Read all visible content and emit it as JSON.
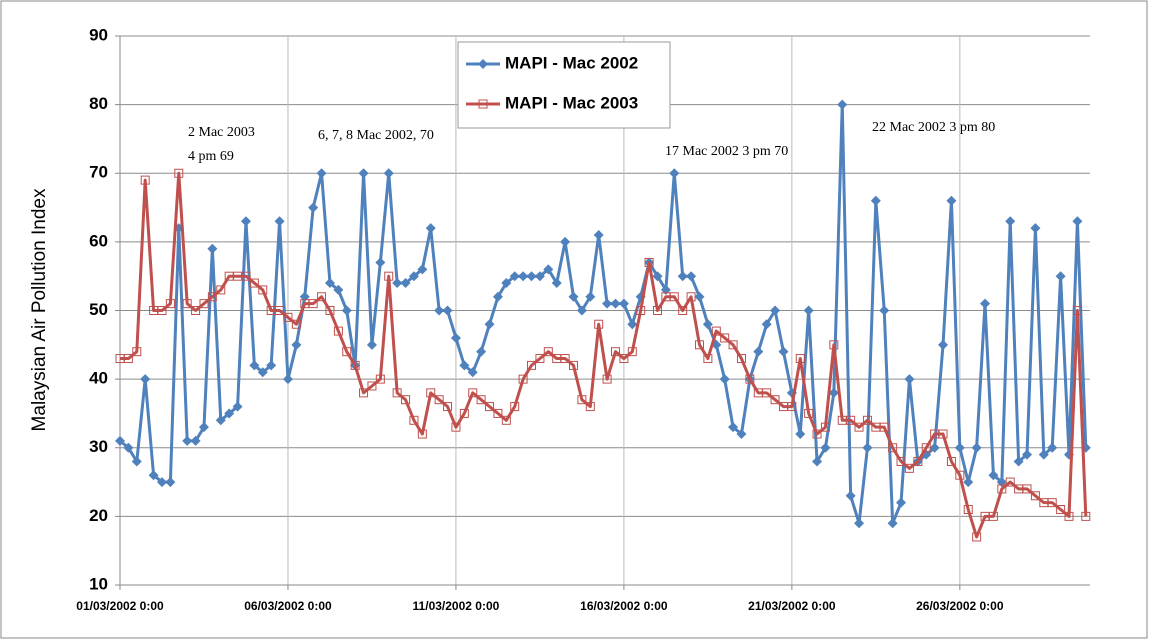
{
  "chart_data": {
    "type": "line",
    "y_label": "Malaysian Air Pollution Index",
    "annotations": [
      "2 Mac 2003",
      "4 pm 69",
      "6, 7, 8 Mac 2002, 70",
      "17 Mac 2002 3 pm 70",
      "22 Mac 2002 3 pm 80"
    ],
    "ylim": [
      10,
      90
    ],
    "yticks": [
      10,
      20,
      30,
      40,
      50,
      60,
      70,
      80,
      90
    ],
    "grid": true,
    "xlim": [
      "2002-03-01 00:00",
      "2002-03-29 21:00"
    ],
    "xticks": [
      {
        "value": "2002-03-01 00:00",
        "label": "01/03/2002 0:00"
      },
      {
        "value": "2002-03-06 00:00",
        "label": "06/03/2002 0:00"
      },
      {
        "value": "2002-03-11 00:00",
        "label": "11/03/2002 0:00"
      },
      {
        "value": "2002-03-16 00:00",
        "label": "16/03/2002 0:00"
      },
      {
        "value": "2002-03-21 00:00",
        "label": "21/03/2002 0:00"
      },
      {
        "value": "2002-03-26 00:00",
        "label": "26/03/2002 0:00"
      }
    ],
    "x": [
      "2002-03-01 00:00",
      "2002-03-01 06:00",
      "2002-03-01 12:00",
      "2002-03-01 18:00",
      "2002-03-02 00:00",
      "2002-03-02 06:00",
      "2002-03-02 12:00",
      "2002-03-02 18:00",
      "2002-03-03 00:00",
      "2002-03-03 06:00",
      "2002-03-03 12:00",
      "2002-03-03 18:00",
      "2002-03-04 00:00",
      "2002-03-04 06:00",
      "2002-03-04 12:00",
      "2002-03-04 18:00",
      "2002-03-05 00:00",
      "2002-03-05 06:00",
      "2002-03-05 12:00",
      "2002-03-05 18:00",
      "2002-03-06 00:00",
      "2002-03-06 06:00",
      "2002-03-06 12:00",
      "2002-03-06 18:00",
      "2002-03-07 00:00",
      "2002-03-07 06:00",
      "2002-03-07 12:00",
      "2002-03-07 18:00",
      "2002-03-08 00:00",
      "2002-03-08 06:00",
      "2002-03-08 12:00",
      "2002-03-08 18:00",
      "2002-03-09 00:00",
      "2002-03-09 06:00",
      "2002-03-09 12:00",
      "2002-03-09 18:00",
      "2002-03-10 00:00",
      "2002-03-10 06:00",
      "2002-03-10 12:00",
      "2002-03-10 18:00",
      "2002-03-11 00:00",
      "2002-03-11 06:00",
      "2002-03-11 12:00",
      "2002-03-11 18:00",
      "2002-03-12 00:00",
      "2002-03-12 06:00",
      "2002-03-12 12:00",
      "2002-03-12 18:00",
      "2002-03-13 00:00",
      "2002-03-13 06:00",
      "2002-03-13 12:00",
      "2002-03-13 18:00",
      "2002-03-14 00:00",
      "2002-03-14 06:00",
      "2002-03-14 12:00",
      "2002-03-14 18:00",
      "2002-03-15 00:00",
      "2002-03-15 06:00",
      "2002-03-15 12:00",
      "2002-03-15 18:00",
      "2002-03-16 00:00",
      "2002-03-16 06:00",
      "2002-03-16 12:00",
      "2002-03-16 18:00",
      "2002-03-17 00:00",
      "2002-03-17 06:00",
      "2002-03-17 12:00",
      "2002-03-17 18:00",
      "2002-03-18 00:00",
      "2002-03-18 06:00",
      "2002-03-18 12:00",
      "2002-03-18 18:00",
      "2002-03-19 00:00",
      "2002-03-19 06:00",
      "2002-03-19 12:00",
      "2002-03-19 18:00",
      "2002-03-20 00:00",
      "2002-03-20 06:00",
      "2002-03-20 12:00",
      "2002-03-20 18:00",
      "2002-03-21 00:00",
      "2002-03-21 06:00",
      "2002-03-21 12:00",
      "2002-03-21 18:00",
      "2002-03-22 00:00",
      "2002-03-22 06:00",
      "2002-03-22 12:00",
      "2002-03-22 18:00",
      "2002-03-23 00:00",
      "2002-03-23 06:00",
      "2002-03-23 12:00",
      "2002-03-23 18:00",
      "2002-03-24 00:00",
      "2002-03-24 06:00",
      "2002-03-24 12:00",
      "2002-03-24 18:00",
      "2002-03-25 00:00",
      "2002-03-25 06:00",
      "2002-03-25 12:00",
      "2002-03-25 18:00",
      "2002-03-26 00:00",
      "2002-03-26 06:00",
      "2002-03-26 12:00",
      "2002-03-26 18:00",
      "2002-03-27 00:00",
      "2002-03-27 06:00",
      "2002-03-27 12:00",
      "2002-03-27 18:00",
      "2002-03-28 00:00",
      "2002-03-28 06:00",
      "2002-03-28 12:00",
      "2002-03-28 18:00",
      "2002-03-29 00:00",
      "2002-03-29 06:00",
      "2002-03-29 12:00",
      "2002-03-29 18:00"
    ],
    "series": [
      {
        "name": "MAPI - Mac 2002",
        "color": "#4f81bd",
        "marker": "diamond",
        "values": [
          31,
          30,
          28,
          40,
          26,
          25,
          25,
          62,
          31,
          31,
          33,
          59,
          34,
          35,
          36,
          63,
          42,
          41,
          42,
          63,
          40,
          45,
          52,
          65,
          70,
          54,
          53,
          50,
          42,
          70,
          45,
          57,
          70,
          54,
          54,
          55,
          56,
          62,
          50,
          50,
          46,
          42,
          41,
          44,
          48,
          52,
          54,
          55,
          55,
          55,
          55,
          56,
          54,
          60,
          52,
          50,
          52,
          61,
          51,
          51,
          51,
          48,
          52,
          57,
          55,
          53,
          70,
          55,
          55,
          52,
          48,
          45,
          40,
          33,
          32,
          40,
          44,
          48,
          50,
          44,
          38,
          32,
          50,
          28,
          30,
          38,
          80,
          23,
          19,
          30,
          66,
          50,
          19,
          22,
          40,
          28,
          29,
          30,
          45,
          66,
          30,
          25,
          30,
          51,
          26,
          25,
          63,
          28,
          29,
          62,
          29,
          30,
          55,
          29,
          63,
          30
        ]
      },
      {
        "name": "MAPI - Mac 2003",
        "color": "#c0504d",
        "marker": "square",
        "values": [
          43,
          43,
          44,
          69,
          50,
          50,
          51,
          70,
          51,
          50,
          51,
          52,
          53,
          55,
          55,
          55,
          54,
          53,
          50,
          50,
          49,
          48,
          51,
          51,
          52,
          50,
          47,
          44,
          42,
          38,
          39,
          40,
          55,
          38,
          37,
          34,
          32,
          38,
          37,
          36,
          33,
          35,
          38,
          37,
          36,
          35,
          34,
          36,
          40,
          42,
          43,
          44,
          43,
          43,
          42,
          37,
          36,
          48,
          40,
          44,
          43,
          44,
          50,
          57,
          50,
          52,
          52,
          50,
          52,
          45,
          43,
          47,
          46,
          45,
          43,
          40,
          38,
          38,
          37,
          36,
          36,
          43,
          35,
          32,
          33,
          45,
          34,
          34,
          33,
          34,
          33,
          33,
          30,
          28,
          27,
          28,
          30,
          32,
          32,
          28,
          26,
          21,
          17,
          20,
          20,
          24,
          25,
          24,
          24,
          23,
          22,
          22,
          21,
          20,
          50,
          20
        ]
      }
    ]
  }
}
